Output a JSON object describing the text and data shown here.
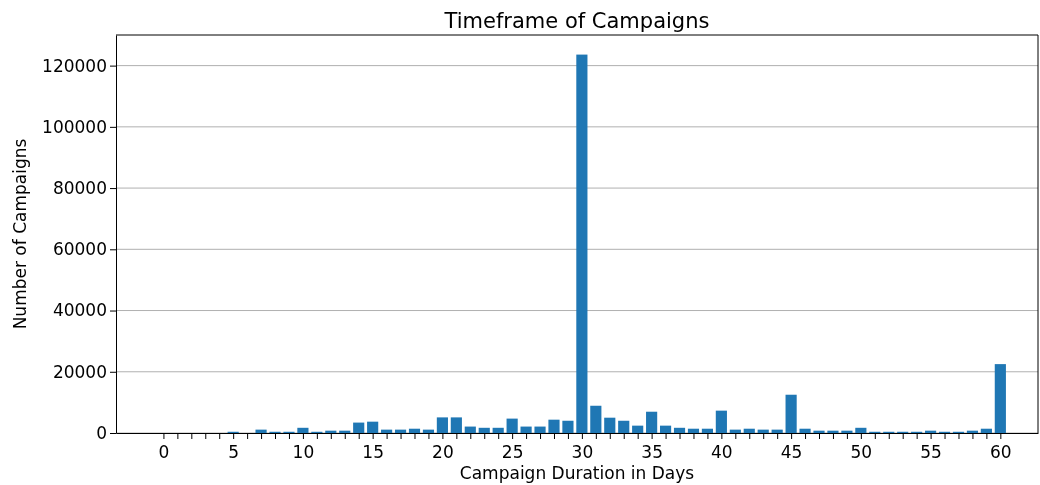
{
  "chart_data": {
    "type": "bar",
    "title": "Timeframe of Campaigns",
    "xlabel": "Campaign Duration in Days",
    "ylabel": "Number of Campaigns",
    "x": [
      5,
      7,
      8,
      9,
      10,
      11,
      12,
      13,
      14,
      15,
      16,
      17,
      18,
      19,
      20,
      21,
      22,
      23,
      24,
      25,
      26,
      27,
      28,
      29,
      30,
      31,
      32,
      33,
      34,
      35,
      36,
      37,
      38,
      39,
      40,
      41,
      42,
      43,
      44,
      45,
      46,
      47,
      48,
      49,
      50,
      51,
      52,
      53,
      54,
      55,
      56,
      57,
      58,
      59,
      60
    ],
    "values": [
      400,
      1100,
      400,
      400,
      1700,
      400,
      760,
      760,
      3400,
      3700,
      1100,
      1100,
      1400,
      1100,
      5100,
      5100,
      2100,
      1700,
      1700,
      4700,
      2100,
      2100,
      4350,
      4000,
      123600,
      8900,
      5000,
      4000,
      2400,
      6950,
      2400,
      1700,
      1400,
      1400,
      7300,
      1100,
      1400,
      1100,
      1100,
      12500,
      1400,
      760,
      760,
      760,
      1700,
      400,
      400,
      400,
      400,
      760,
      400,
      400,
      760,
      1400,
      22500
    ],
    "color": "#1f77b4",
    "xlim": [
      -3.4,
      62.7
    ],
    "ylim": [
      0,
      130000
    ],
    "xticks": [
      0,
      {
        "value": 1,
        "label": null
      },
      {
        "value": 2,
        "label": null
      },
      {
        "value": 3,
        "label": null
      },
      {
        "value": 4,
        "label": null
      },
      5,
      {
        "value": 6,
        "label": null
      },
      {
        "value": 7,
        "label": null
      },
      {
        "value": 8,
        "label": null
      },
      {
        "value": 9,
        "label": null
      },
      10,
      {
        "value": 11,
        "label": null
      },
      {
        "value": 12,
        "label": null
      },
      {
        "value": 13,
        "label": null
      },
      {
        "value": 14,
        "label": null
      },
      15,
      {
        "value": 16,
        "label": null
      },
      {
        "value": 17,
        "label": null
      },
      {
        "value": 18,
        "label": null
      },
      {
        "value": 19,
        "label": null
      },
      20,
      {
        "value": 21,
        "label": null
      },
      {
        "value": 22,
        "label": null
      },
      {
        "value": 23,
        "label": null
      },
      {
        "value": 24,
        "label": null
      },
      25,
      {
        "value": 26,
        "label": null
      },
      {
        "value": 27,
        "label": null
      },
      {
        "value": 28,
        "label": null
      },
      {
        "value": 29,
        "label": null
      },
      30,
      {
        "value": 31,
        "label": null
      },
      {
        "value": 32,
        "label": null
      },
      {
        "value": 33,
        "label": null
      },
      {
        "value": 34,
        "label": null
      },
      35,
      {
        "value": 36,
        "label": null
      },
      {
        "value": 37,
        "label": null
      },
      {
        "value": 38,
        "label": null
      },
      {
        "value": 39,
        "label": null
      },
      40,
      {
        "value": 41,
        "label": null
      },
      {
        "value": 42,
        "label": null
      },
      {
        "value": 43,
        "label": null
      },
      {
        "value": 44,
        "label": null
      },
      45,
      {
        "value": 46,
        "label": null
      },
      {
        "value": 47,
        "label": null
      },
      {
        "value": 48,
        "label": null
      },
      {
        "value": 49,
        "label": null
      },
      50,
      {
        "value": 51,
        "label": null
      },
      {
        "value": 52,
        "label": null
      },
      {
        "value": 53,
        "label": null
      },
      {
        "value": 54,
        "label": null
      },
      55,
      {
        "value": 56,
        "label": null
      },
      {
        "value": 57,
        "label": null
      },
      {
        "value": 58,
        "label": null
      },
      {
        "value": 59,
        "label": null
      },
      60
    ],
    "yticks": [
      0,
      20000,
      40000,
      60000,
      80000,
      100000,
      120000
    ],
    "grid": "y"
  }
}
